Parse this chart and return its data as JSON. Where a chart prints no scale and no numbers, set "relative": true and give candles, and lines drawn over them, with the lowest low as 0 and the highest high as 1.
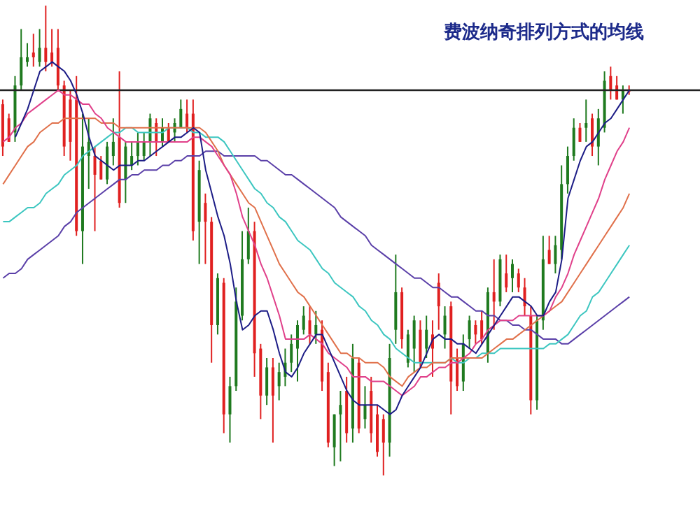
{
  "chart_data": {
    "type": "candlestick",
    "title": "费波纳奇排列方式的均线",
    "relative": true,
    "categories": [
      null,
      null,
      null,
      null,
      null,
      null,
      null,
      null,
      null,
      null,
      null,
      null,
      null,
      null,
      null,
      null,
      null,
      null,
      null,
      null,
      null,
      null,
      null,
      null,
      null,
      null,
      null,
      null,
      null,
      null,
      null,
      null,
      null,
      null,
      null,
      null,
      null,
      null,
      null,
      null,
      null,
      null,
      null,
      null,
      null,
      null,
      null,
      null,
      null,
      null,
      null,
      null,
      null,
      null,
      null,
      null,
      null,
      null,
      null,
      null,
      null,
      null,
      null,
      null,
      null,
      null,
      null,
      null,
      null,
      null,
      null,
      null,
      null,
      null,
      null,
      null,
      null,
      null,
      null,
      null,
      null,
      null,
      null,
      null,
      null,
      null,
      null,
      null,
      null,
      null,
      null,
      null,
      null,
      null,
      null,
      null,
      null,
      null,
      null,
      null,
      null,
      null,
      null,
      null,
      null,
      null,
      null,
      null,
      null,
      null,
      null,
      null,
      null,
      null
    ],
    "ohlc": [
      [
        0.79,
        0.8,
        0.68,
        0.7
      ],
      [
        0.76,
        0.77,
        0.71,
        0.71
      ],
      [
        0.73,
        0.85,
        0.71,
        0.83
      ],
      [
        0.83,
        0.95,
        0.82,
        0.89
      ],
      [
        0.88,
        0.92,
        0.87,
        0.89
      ],
      [
        0.9,
        0.94,
        0.87,
        0.89
      ],
      [
        0.88,
        0.95,
        0.87,
        0.91
      ],
      [
        0.91,
        1,
        0.86,
        0.88
      ],
      [
        0.9,
        0.95,
        0.87,
        0.88
      ],
      [
        0.91,
        0.95,
        0.82,
        0.83
      ],
      [
        0.83,
        0.84,
        0.68,
        0.7
      ],
      [
        0.8,
        0.82,
        0.67,
        0.71
      ],
      [
        0.8,
        0.85,
        0.51,
        0.52
      ],
      [
        0.52,
        0.77,
        0.45,
        0.7
      ],
      [
        0.68,
        0.76,
        0.61,
        0.71
      ],
      [
        0.68,
        0.7,
        0.52,
        0.64
      ],
      [
        0.67,
        0.68,
        0.63,
        0.63
      ],
      [
        0.63,
        0.71,
        0.62,
        0.7
      ],
      [
        0.68,
        0.76,
        0.66,
        0.71
      ],
      [
        0.72,
        0.86,
        0.57,
        0.58
      ],
      [
        0.63,
        0.71,
        0.58,
        0.7
      ],
      [
        0.66,
        0.71,
        0.65,
        0.68
      ],
      [
        0.68,
        0.73,
        0.66,
        0.71
      ],
      [
        0.68,
        0.73,
        0.67,
        0.71
      ],
      [
        0.71,
        0.77,
        0.68,
        0.76
      ],
      [
        0.75,
        0.76,
        0.68,
        0.71
      ],
      [
        0.71,
        0.76,
        0.7,
        0.74
      ],
      [
        0.74,
        0.75,
        0.71,
        0.71
      ],
      [
        0.73,
        0.76,
        0.71,
        0.75
      ],
      [
        0.74,
        0.8,
        0.74,
        0.78
      ],
      [
        0.77,
        0.8,
        0.73,
        0.74
      ],
      [
        0.77,
        0.8,
        0.5,
        0.52
      ],
      [
        0.54,
        0.67,
        0.45,
        0.65
      ],
      [
        0.58,
        0.6,
        0.45,
        0.54
      ],
      [
        0.54,
        0.55,
        0.24,
        0.32
      ],
      [
        0.32,
        0.43,
        0.3,
        0.42
      ],
      [
        0.41,
        0.42,
        0.09,
        0.13
      ],
      [
        0.13,
        0.21,
        0.07,
        0.19
      ],
      [
        0.19,
        0.4,
        0.18,
        0.37
      ],
      [
        0.34,
        0.52,
        0.33,
        0.46
      ],
      [
        0.46,
        0.57,
        0.45,
        0.52
      ],
      [
        0.52,
        0.54,
        0.21,
        0.26
      ],
      [
        0.27,
        0.28,
        0.12,
        0.17
      ],
      [
        0.17,
        0.25,
        0.15,
        0.23
      ],
      [
        0.23,
        0.25,
        0.07,
        0.17
      ],
      [
        0.19,
        0.24,
        0.16,
        0.22
      ],
      [
        0.21,
        0.27,
        0.19,
        0.24
      ],
      [
        0.24,
        0.3,
        0.22,
        0.28
      ],
      [
        0.27,
        0.33,
        0.2,
        0.32
      ],
      [
        0.31,
        0.36,
        0.3,
        0.34
      ],
      [
        0.33,
        0.36,
        0.28,
        0.3
      ],
      [
        0.3,
        0.35,
        0.28,
        0.32
      ],
      [
        0.31,
        0.33,
        0.18,
        0.2
      ],
      [
        0.22,
        0.24,
        0.06,
        0.07
      ],
      [
        0.06,
        0.13,
        0.02,
        0.13
      ],
      [
        0.13,
        0.18,
        0.03,
        0.15
      ],
      [
        0.18,
        0.21,
        0.07,
        0.09
      ],
      [
        0.1,
        0.28,
        0.07,
        0.25
      ],
      [
        0.24,
        0.25,
        0.09,
        0.1
      ],
      [
        0.12,
        0.19,
        0.1,
        0.15
      ],
      [
        0.18,
        0.21,
        0.07,
        0.09
      ],
      [
        0.13,
        0.15,
        0.04,
        0.05
      ],
      [
        0.12,
        0.13,
        0,
        0.07
      ],
      [
        0.07,
        0.28,
        0.04,
        0.25
      ],
      [
        0.31,
        0.47,
        0.28,
        0.39
      ],
      [
        0.39,
        0.4,
        0.27,
        0.29
      ],
      [
        0.24,
        0.31,
        0.23,
        0.3
      ],
      [
        0.27,
        0.34,
        0.22,
        0.33
      ],
      [
        0.31,
        0.33,
        0.23,
        0.24
      ],
      [
        0.27,
        0.34,
        0.25,
        0.31
      ],
      [
        0.3,
        0.33,
        0.21,
        0.27
      ],
      [
        0.41,
        0.43,
        0.31,
        0.36
      ],
      [
        0.3,
        0.36,
        0.27,
        0.34
      ],
      [
        0.36,
        0.37,
        0.13,
        0.2
      ],
      [
        0.25,
        0.27,
        0.18,
        0.19
      ],
      [
        0.2,
        0.3,
        0.18,
        0.28
      ],
      [
        0.29,
        0.34,
        0.27,
        0.33
      ],
      [
        0.32,
        0.33,
        0.28,
        0.3
      ],
      [
        0.33,
        0.35,
        0.28,
        0.29
      ],
      [
        0.26,
        0.4,
        0.24,
        0.39
      ],
      [
        0.39,
        0.46,
        0.31,
        0.37
      ],
      [
        0.37,
        0.47,
        0.36,
        0.46
      ],
      [
        0.43,
        0.47,
        0.39,
        0.4
      ],
      [
        0.42,
        0.46,
        0.39,
        0.45
      ],
      [
        0.43,
        0.44,
        0.39,
        0.4
      ],
      [
        0.4,
        0.42,
        0.34,
        0.36
      ],
      [
        0.34,
        0.36,
        0.13,
        0.16
      ],
      [
        0.16,
        0.34,
        0.14,
        0.33
      ],
      [
        0.33,
        0.51,
        0.31,
        0.46
      ],
      [
        0.48,
        0.51,
        0.45,
        0.45
      ],
      [
        0.45,
        0.51,
        0.43,
        0.49
      ],
      [
        0.48,
        0.66,
        0.46,
        0.62
      ],
      [
        0.62,
        0.7,
        0.6,
        0.68
      ],
      [
        0.68,
        0.76,
        0.67,
        0.74
      ],
      [
        0.74,
        0.75,
        0.71,
        0.71
      ],
      [
        0.74,
        0.8,
        0.71,
        0.75
      ],
      [
        0.76,
        0.77,
        0.68,
        0.7
      ],
      [
        0.7,
        0.78,
        0.66,
        0.76
      ],
      [
        0.74,
        0.86,
        0.73,
        0.84
      ],
      [
        0.85,
        0.87,
        0.8,
        0.82
      ],
      [
        0.83,
        0.85,
        0.8,
        0.8
      ],
      [
        0.8,
        0.83,
        0.77,
        0.82
      ],
      [
        0.82,
        0.83,
        0.81,
        0.82
      ],
      null,
      null,
      null,
      null,
      null,
      null,
      null,
      null,
      null,
      null,
      null
    ],
    "colors": [
      "#e02020",
      "#e02020",
      "#1f7a1f",
      "#1f7a1f",
      "#1f7a1f",
      "#e02020",
      "#1f7a1f",
      "#e02020",
      "#e02020",
      "#e02020",
      "#e02020",
      "#e02020",
      "#e02020",
      "#1f7a1f",
      "#1f7a1f",
      "#e02020",
      "#e02020",
      "#1f7a1f",
      "#1f7a1f",
      "#e02020",
      "#1f7a1f",
      "#1f7a1f",
      "#1f7a1f",
      "#1f7a1f",
      "#1f7a1f",
      "#e02020",
      "#1f7a1f",
      "#e02020",
      "#1f7a1f",
      "#1f7a1f",
      "#e02020",
      "#e02020",
      "#1f7a1f",
      "#e02020",
      "#e02020",
      "#1f7a1f",
      "#e02020",
      "#1f7a1f",
      "#1f7a1f",
      "#1f7a1f",
      "#1f7a1f",
      "#e02020",
      "#e02020",
      "#1f7a1f",
      "#e02020",
      "#1f7a1f",
      "#1f7a1f",
      "#1f7a1f",
      "#1f7a1f",
      "#1f7a1f",
      "#e02020",
      "#1f7a1f",
      "#e02020",
      "#e02020",
      "#1f7a1f",
      "#1f7a1f",
      "#e02020",
      "#1f7a1f",
      "#e02020",
      "#1f7a1f",
      "#e02020",
      "#e02020",
      "#e02020",
      "#1f7a1f",
      "#1f7a1f",
      "#e02020",
      "#1f7a1f",
      "#1f7a1f",
      "#e02020",
      "#1f7a1f",
      "#e02020",
      "#e02020",
      "#1f7a1f",
      "#e02020",
      "#e02020",
      "#1f7a1f",
      "#1f7a1f",
      "#e02020",
      "#e02020",
      "#1f7a1f",
      "#e02020",
      "#1f7a1f",
      "#e02020",
      "#1f7a1f",
      "#e02020",
      "#e02020",
      "#e02020",
      "#1f7a1f",
      "#1f7a1f",
      "#e02020",
      "#1f7a1f",
      "#1f7a1f",
      "#1f7a1f",
      "#1f7a1f",
      "#e02020",
      "#1f7a1f",
      "#e02020",
      "#1f7a1f",
      "#1f7a1f",
      "#e02020",
      "#e02020",
      "#1f7a1f",
      "#e02020",
      null,
      null,
      null,
      null,
      null,
      null,
      null,
      null,
      null,
      null,
      null
    ],
    "series": [
      {
        "type": "line",
        "color": "#5a3fa8",
        "values": [
          0.42,
          0.43,
          0.43,
          0.44,
          0.46,
          0.47,
          0.48,
          0.49,
          0.5,
          0.51,
          0.53,
          0.54,
          0.56,
          0.57,
          0.58,
          0.59,
          0.6,
          0.61,
          0.62,
          0.63,
          0.63,
          0.64,
          0.64,
          0.65,
          0.65,
          0.65,
          0.66,
          0.66,
          0.67,
          0.67,
          0.68,
          0.68,
          0.68,
          0.69,
          0.69,
          0.69,
          0.68,
          0.68,
          0.68,
          0.68,
          0.68,
          0.68,
          0.67,
          0.67,
          0.66,
          0.65,
          0.64,
          0.64,
          0.63,
          0.62,
          0.61,
          0.6,
          0.59,
          0.58,
          0.57,
          0.55,
          0.54,
          0.53,
          0.52,
          0.51,
          0.49,
          0.48,
          0.47,
          0.46,
          0.45,
          0.44,
          0.43,
          0.42,
          0.42,
          0.41,
          0.4,
          0.4,
          0.39,
          0.38,
          0.38,
          0.37,
          0.36,
          0.35,
          0.35,
          0.34,
          0.34,
          0.33,
          0.33,
          0.32,
          0.32,
          0.31,
          0.31,
          0.3,
          0.29,
          0.29,
          0.29,
          0.28,
          0.28,
          0.29,
          0.3,
          0.31,
          0.32,
          0.33,
          0.34,
          0.35,
          0.36,
          0.37,
          0.38,
          null,
          null,
          null,
          null,
          null,
          null,
          null,
          null,
          null,
          null,
          null
        ]
      },
      {
        "type": "line",
        "color": "#3cc6c0",
        "values": [
          0.54,
          0.54,
          0.55,
          0.56,
          0.57,
          0.57,
          0.58,
          0.6,
          0.61,
          0.62,
          0.64,
          0.65,
          0.66,
          0.68,
          0.69,
          0.7,
          0.71,
          0.72,
          0.73,
          0.73,
          0.74,
          0.74,
          0.73,
          0.73,
          0.73,
          0.73,
          0.73,
          0.74,
          0.74,
          0.74,
          0.74,
          0.73,
          0.73,
          0.72,
          0.72,
          0.72,
          0.71,
          0.69,
          0.67,
          0.65,
          0.63,
          0.61,
          0.6,
          0.58,
          0.57,
          0.55,
          0.54,
          0.52,
          0.5,
          0.49,
          0.48,
          0.46,
          0.44,
          0.43,
          0.41,
          0.4,
          0.39,
          0.38,
          0.36,
          0.35,
          0.33,
          0.32,
          0.3,
          0.29,
          0.27,
          0.26,
          0.25,
          0.24,
          0.24,
          0.24,
          0.24,
          0.24,
          0.24,
          0.25,
          0.24,
          0.24,
          0.25,
          0.25,
          0.26,
          0.26,
          0.26,
          0.27,
          0.27,
          0.27,
          0.27,
          0.27,
          0.27,
          0.27,
          0.27,
          0.28,
          0.28,
          0.29,
          0.3,
          0.32,
          0.34,
          0.35,
          0.38,
          0.39,
          0.41,
          0.43,
          0.45,
          0.47,
          0.49,
          null,
          null,
          null,
          null,
          null,
          null,
          null,
          null,
          null,
          null,
          null
        ]
      },
      {
        "type": "line",
        "color": "#e0704a",
        "values": [
          0.62,
          0.64,
          0.66,
          0.68,
          0.7,
          0.71,
          0.73,
          0.74,
          0.75,
          0.75,
          0.76,
          0.76,
          0.76,
          0.76,
          0.76,
          0.76,
          0.75,
          0.75,
          0.75,
          0.74,
          0.74,
          0.74,
          0.74,
          0.74,
          0.74,
          0.74,
          0.74,
          0.74,
          0.74,
          0.74,
          0.74,
          0.74,
          0.74,
          0.73,
          0.71,
          0.69,
          0.66,
          0.64,
          0.62,
          0.6,
          0.58,
          0.57,
          0.54,
          0.51,
          0.48,
          0.45,
          0.43,
          0.41,
          0.39,
          0.38,
          0.36,
          0.34,
          0.32,
          0.3,
          0.28,
          0.26,
          0.26,
          0.25,
          0.25,
          0.24,
          0.24,
          0.24,
          0.23,
          0.21,
          0.2,
          0.19,
          0.21,
          0.22,
          0.23,
          0.23,
          0.24,
          0.24,
          0.24,
          0.25,
          0.25,
          0.25,
          0.25,
          0.25,
          0.25,
          0.26,
          0.27,
          0.28,
          0.29,
          0.29,
          0.3,
          0.31,
          0.32,
          0.33,
          0.34,
          0.35,
          0.36,
          0.37,
          0.39,
          0.41,
          0.43,
          0.45,
          0.47,
          0.49,
          0.51,
          0.53,
          0.55,
          0.57,
          0.6,
          null,
          null,
          null,
          null,
          null,
          null,
          null,
          null,
          null,
          null,
          null
        ]
      },
      {
        "type": "line",
        "color": "#e0408a",
        "values": [
          0.71,
          0.72,
          0.74,
          0.75,
          0.77,
          0.78,
          0.79,
          0.8,
          0.81,
          0.82,
          0.81,
          0.81,
          0.8,
          0.79,
          0.79,
          0.77,
          0.76,
          0.74,
          0.73,
          0.72,
          0.71,
          0.71,
          0.71,
          0.71,
          0.71,
          0.71,
          0.71,
          0.71,
          0.71,
          0.71,
          0.71,
          0.72,
          0.72,
          0.71,
          0.7,
          0.68,
          0.66,
          0.64,
          0.6,
          0.55,
          0.52,
          0.49,
          0.45,
          0.42,
          0.38,
          0.34,
          0.29,
          0.29,
          0.29,
          0.29,
          0.3,
          0.29,
          0.28,
          0.26,
          0.25,
          0.24,
          0.23,
          0.21,
          0.21,
          0.21,
          0.2,
          0.2,
          0.2,
          0.19,
          0.18,
          0.17,
          0.18,
          0.19,
          0.21,
          0.21,
          0.22,
          0.23,
          0.23,
          0.24,
          0.24,
          0.25,
          0.26,
          0.28,
          0.29,
          0.31,
          0.32,
          0.33,
          0.33,
          0.33,
          0.34,
          0.34,
          0.34,
          0.34,
          0.34,
          0.35,
          0.38,
          0.4,
          0.43,
          0.47,
          0.5,
          0.53,
          0.56,
          0.59,
          0.63,
          0.66,
          0.69,
          0.71,
          0.74,
          null,
          null,
          null,
          null,
          null,
          null,
          null,
          null,
          null,
          null,
          null
        ]
      },
      {
        "type": "line",
        "color": "#1c1c86",
        "values": [
          null,
          null,
          0.72,
          0.75,
          0.78,
          0.82,
          0.86,
          0.87,
          0.88,
          0.87,
          0.86,
          0.84,
          0.81,
          0.77,
          0.72,
          0.68,
          0.67,
          0.66,
          0.65,
          0.66,
          0.66,
          0.66,
          0.67,
          0.67,
          0.68,
          0.69,
          0.7,
          0.71,
          0.72,
          0.72,
          0.73,
          0.74,
          0.73,
          0.65,
          0.6,
          0.55,
          0.51,
          0.45,
          0.37,
          0.31,
          0.32,
          0.34,
          0.35,
          0.35,
          0.31,
          0.26,
          0.22,
          0.21,
          0.23,
          0.26,
          0.28,
          0.3,
          0.3,
          0.27,
          0.24,
          0.21,
          0.18,
          0.16,
          0.15,
          0.15,
          0.15,
          0.15,
          0.14,
          0.13,
          0.14,
          0.17,
          0.19,
          0.21,
          0.23,
          0.26,
          0.29,
          0.3,
          0.29,
          0.29,
          0.28,
          0.28,
          0.27,
          0.26,
          0.28,
          0.3,
          0.32,
          0.34,
          0.36,
          0.38,
          0.38,
          0.37,
          0.36,
          0.34,
          0.34,
          0.37,
          0.39,
          0.46,
          0.59,
          0.63,
          0.67,
          0.7,
          0.71,
          0.73,
          0.75,
          0.76,
          0.78,
          0.8,
          0.82,
          null,
          null,
          null,
          null,
          null,
          null,
          null,
          null,
          null,
          null,
          null
        ]
      }
    ],
    "ref_lines": [
      {
        "axis": "y",
        "value": 0.82,
        "color": "#222222"
      }
    ]
  }
}
